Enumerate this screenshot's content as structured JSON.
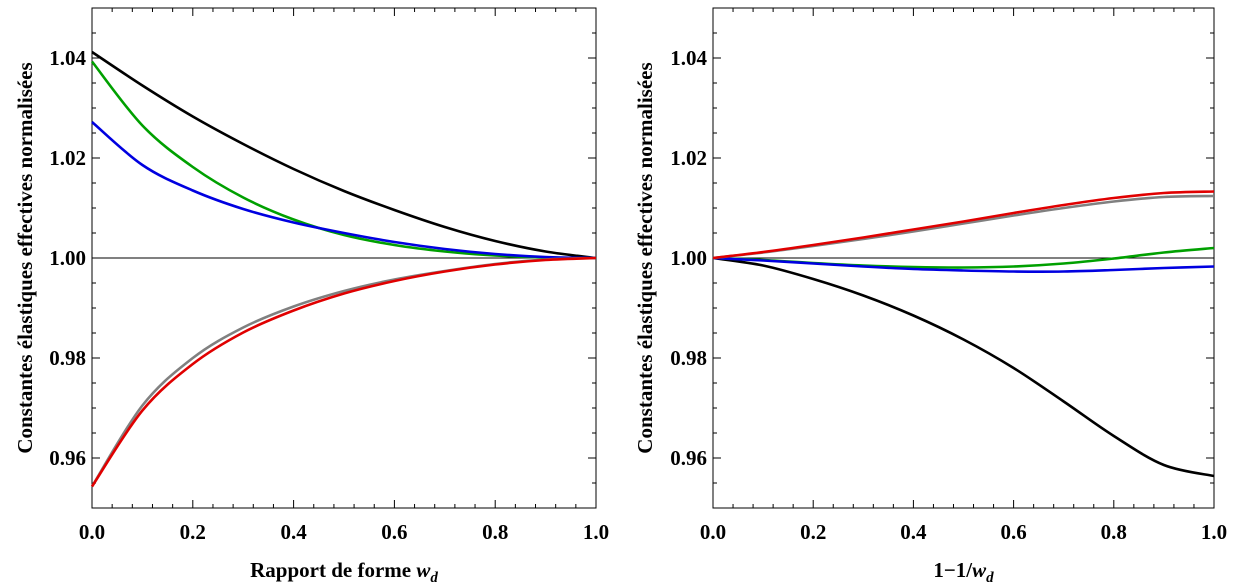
{
  "chart_data": [
    {
      "type": "line",
      "title": "",
      "xlabel": "Rapport de forme ",
      "xlabel_var": "w",
      "xlabel_sub": "d",
      "ylabel": "Constantes élastiques effectives normalisées",
      "xlim": [
        0.0,
        1.0
      ],
      "ylim": [
        0.95,
        1.05
      ],
      "x_ticks": [
        "0.0",
        "0.2",
        "0.4",
        "0.6",
        "0.8",
        "1.0"
      ],
      "y_ticks": [
        "0.96",
        "0.98",
        "1.00",
        "1.02",
        "1.04"
      ],
      "reference_line": 1.0,
      "grid": false,
      "x": [
        0.0,
        0.1,
        0.2,
        0.3,
        0.4,
        0.5,
        0.6,
        0.7,
        0.8,
        0.9,
        1.0
      ],
      "series": [
        {
          "color": "#000000",
          "values": [
            1.0412,
            1.0345,
            1.0283,
            1.0228,
            1.0178,
            1.0134,
            1.0096,
            1.0062,
            1.0034,
            1.0013,
            1.0
          ]
        },
        {
          "color": "#00a000",
          "values": [
            1.0393,
            1.0265,
            1.0182,
            1.0121,
            1.0077,
            1.0046,
            1.0026,
            1.0013,
            1.0005,
            1.0001,
            1.0
          ]
        },
        {
          "color": "#0000e0",
          "values": [
            1.0272,
            1.0186,
            1.0135,
            1.0098,
            1.0071,
            1.005,
            1.0032,
            1.0018,
            1.0008,
            1.0002,
            1.0
          ]
        },
        {
          "color": "#808080",
          "values": [
            0.9543,
            0.9705,
            0.98,
            0.9861,
            0.9903,
            0.9934,
            0.9957,
            0.9974,
            0.9988,
            0.9997,
            1.0
          ]
        },
        {
          "color": "#e00000",
          "values": [
            0.9543,
            0.9695,
            0.9788,
            0.9851,
            0.9895,
            0.9929,
            0.9954,
            0.9973,
            0.9987,
            0.9996,
            1.0
          ]
        }
      ]
    },
    {
      "type": "line",
      "title": "",
      "xlabel": "1−1/",
      "xlabel_var": "w",
      "xlabel_sub": "d",
      "ylabel": "Constantes élastiques effectives normalisées",
      "xlim": [
        0.0,
        1.0
      ],
      "ylim": [
        0.95,
        1.05
      ],
      "x_ticks": [
        "0.0",
        "0.2",
        "0.4",
        "0.6",
        "0.8",
        "1.0"
      ],
      "y_ticks": [
        "0.96",
        "0.98",
        "1.00",
        "1.02",
        "1.04"
      ],
      "reference_line": 1.0,
      "grid": false,
      "x": [
        0.0,
        0.1,
        0.2,
        0.3,
        0.4,
        0.5,
        0.6,
        0.7,
        0.8,
        0.9,
        1.0
      ],
      "series": [
        {
          "color": "#000000",
          "values": [
            1.0,
            0.9985,
            0.9958,
            0.9925,
            0.9885,
            0.9837,
            0.978,
            0.9713,
            0.9644,
            0.9586,
            0.9564
          ]
        },
        {
          "color": "#00a000",
          "values": [
            1.0,
            0.9996,
            0.999,
            0.9985,
            0.9982,
            0.9981,
            0.9983,
            0.9989,
            0.9999,
            1.0011,
            1.002
          ]
        },
        {
          "color": "#0000e0",
          "values": [
            1.0,
            0.9995,
            0.9989,
            0.9983,
            0.9978,
            0.9975,
            0.9973,
            0.9973,
            0.9976,
            0.998,
            0.9983
          ]
        },
        {
          "color": "#808080",
          "values": [
            1.0,
            1.0011,
            1.0024,
            1.0038,
            1.0053,
            1.0069,
            1.0085,
            1.01,
            1.0113,
            1.0122,
            1.0124
          ]
        },
        {
          "color": "#e00000",
          "values": [
            1.0,
            1.0012,
            1.0026,
            1.0041,
            1.0057,
            1.0073,
            1.009,
            1.0106,
            1.012,
            1.013,
            1.0133
          ]
        }
      ]
    }
  ]
}
